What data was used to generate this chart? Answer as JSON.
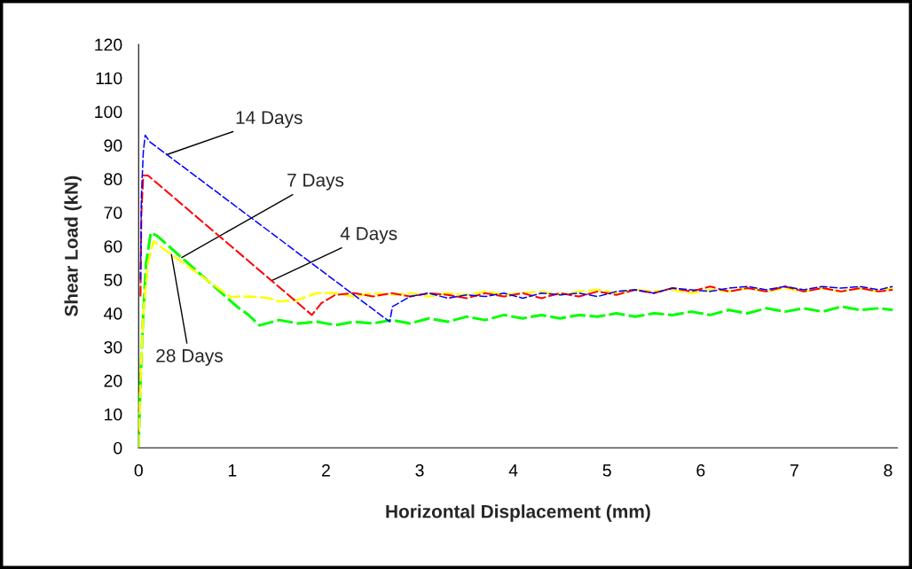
{
  "chart_data": {
    "type": "line",
    "xlabel": "Horizontal Displacement (mm)",
    "ylabel": "Shear Load (kN)",
    "xlim": [
      0,
      8.1
    ],
    "xticks": [
      0,
      1,
      2,
      3,
      4,
      5,
      6,
      7,
      8
    ],
    "ylim": [
      0,
      120
    ],
    "yticks": [
      0,
      10,
      20,
      30,
      40,
      50,
      60,
      70,
      80,
      90,
      100,
      110,
      120
    ],
    "grid": false,
    "legend": false,
    "line_style": "dashed",
    "marker": "none",
    "series": [
      {
        "color": "#0000ff",
        "x": [
          0.02,
          0.03,
          0.05,
          0.07,
          0.12,
          2.68,
          2.71,
          2.9,
          3.1,
          3.3,
          3.5,
          3.7,
          3.9,
          4.1,
          4.3,
          4.5,
          4.7,
          4.9,
          5.1,
          5.3,
          5.5,
          5.7,
          5.9,
          6.1,
          6.3,
          6.5,
          6.7,
          6.9,
          7.1,
          7.3,
          7.5,
          7.7,
          7.9,
          8.05
        ],
        "values": [
          50,
          75,
          88,
          93,
          91,
          37.5,
          42,
          45,
          46,
          44.5,
          45.5,
          45,
          46,
          44.5,
          46,
          45.5,
          46,
          45,
          46.5,
          47,
          46,
          47.5,
          47,
          46.5,
          47.5,
          48,
          47,
          48,
          47,
          48,
          47.5,
          48,
          47,
          48
        ]
      },
      {
        "color": "#ff0000",
        "x": [
          0.02,
          0.03,
          0.05,
          0.1,
          1.85,
          1.95,
          2.1,
          2.3,
          2.5,
          2.7,
          2.9,
          3.1,
          3.3,
          3.5,
          3.7,
          3.9,
          4.1,
          4.3,
          4.5,
          4.7,
          4.9,
          5.1,
          5.3,
          5.5,
          5.7,
          5.9,
          6.1,
          6.3,
          6.5,
          6.7,
          6.9,
          7.1,
          7.3,
          7.5,
          7.7,
          7.9,
          8.05
        ],
        "values": [
          45,
          70,
          81,
          81,
          39.5,
          43,
          45.5,
          46,
          45,
          46,
          45,
          46,
          45.5,
          44.5,
          46,
          45,
          46,
          44.5,
          46,
          45,
          46.5,
          45.5,
          47,
          46,
          47.5,
          46.5,
          48,
          46.5,
          47.5,
          46.5,
          48,
          46.5,
          47.5,
          46.5,
          47.5,
          46.5,
          47
        ]
      },
      {
        "color": "#ffff00",
        "x": [
          0,
          0.02,
          0.05,
          0.1,
          0.16,
          0.25,
          0.98,
          1.2,
          1.4,
          1.5,
          1.7,
          1.9,
          2.1,
          2.3,
          2.5,
          2.7,
          2.9,
          3.1,
          3.3,
          3.5,
          3.7,
          3.9,
          4.1,
          4.3,
          4.5,
          4.7,
          4.9,
          5.1,
          5.3,
          5.5,
          5.7,
          5.9,
          6.1,
          6.3,
          6.5,
          6.7,
          6.9,
          7.1,
          7.3,
          7.5,
          7.7,
          7.9,
          8.05
        ],
        "values": [
          0,
          20,
          40,
          55,
          61.5,
          59.5,
          44.9,
          45,
          44.5,
          43.5,
          44,
          46,
          46,
          45,
          46,
          45.5,
          46,
          45,
          46,
          45.5,
          46.5,
          45.5,
          46,
          46.5,
          45.5,
          46.5,
          47,
          46,
          47,
          46.5,
          47,
          46,
          47,
          46.5,
          47.5,
          46.5,
          47.5,
          46.5,
          47.5,
          46.5,
          47.5,
          46.5,
          47.5
        ]
      },
      {
        "color": "#00ff00",
        "x": [
          0,
          0.02,
          0.05,
          0.08,
          0.13,
          0.2,
          1.05,
          1.17,
          1.29,
          1.5,
          1.7,
          1.9,
          2.1,
          2.3,
          2.5,
          2.7,
          2.9,
          3.1,
          3.3,
          3.5,
          3.7,
          3.9,
          4.1,
          4.3,
          4.5,
          4.7,
          4.9,
          5.1,
          5.3,
          5.5,
          5.7,
          5.9,
          6.1,
          6.3,
          6.5,
          6.7,
          6.9,
          7.1,
          7.3,
          7.5,
          7.7,
          7.9,
          8.05
        ],
        "values": [
          0,
          20,
          40,
          55,
          64,
          63,
          42,
          39.6,
          36.4,
          38,
          37,
          37.5,
          36.5,
          37.5,
          37,
          38,
          37,
          38.5,
          37.5,
          39,
          38,
          39.5,
          38.5,
          39.5,
          38.5,
          39.5,
          39,
          40,
          39,
          40,
          39.5,
          40.5,
          39.5,
          41,
          40,
          41.5,
          40.5,
          41.5,
          40.5,
          42,
          41,
          41.5,
          41
        ]
      }
    ],
    "annotations": [
      {
        "text": "14 Days",
        "x": 0.3,
        "y": 87.2
      },
      {
        "text": "7 Days",
        "x": 0.46,
        "y": 56.6
      },
      {
        "text": "4 Days",
        "x": 1.42,
        "y": 49.7
      },
      {
        "text": "28 Days",
        "x": 0.35,
        "y": 57.5
      }
    ]
  }
}
